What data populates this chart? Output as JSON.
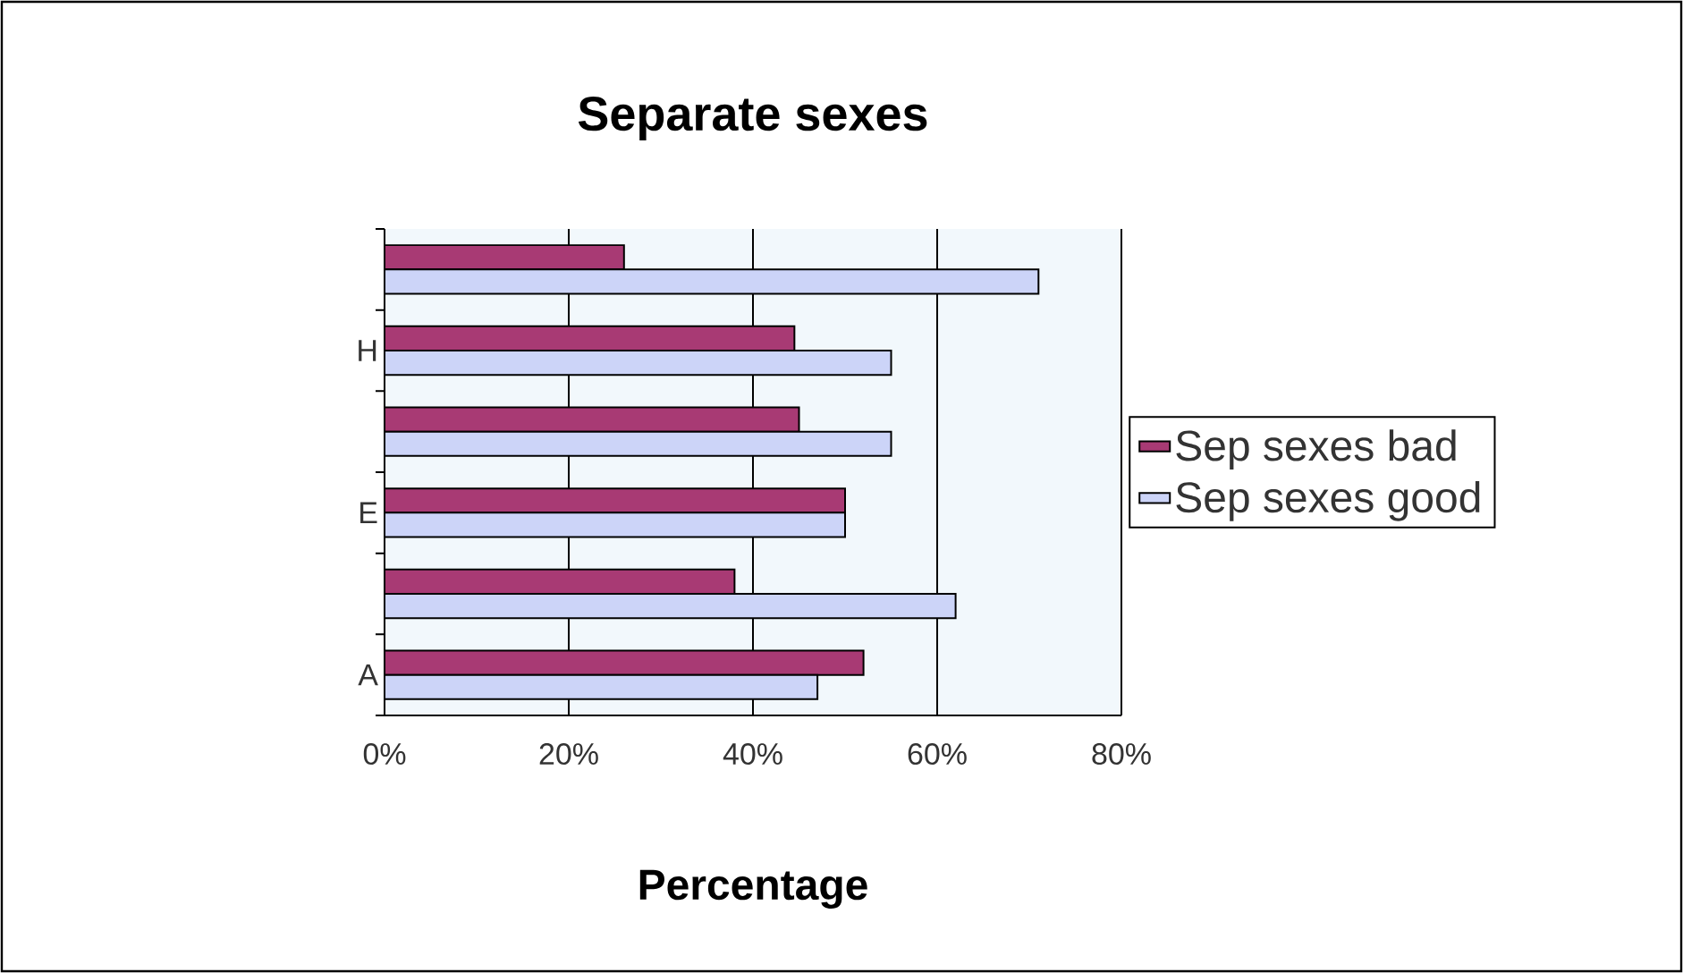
{
  "chart_data": {
    "type": "bar",
    "orientation": "horizontal",
    "title": "Separate sexes",
    "xlabel": "Percentage",
    "categories": [
      null,
      "H",
      null,
      "E",
      null,
      "A"
    ],
    "series": [
      {
        "name": "Sep sexes  bad",
        "color": "#a83a74",
        "values": [
          26,
          44.5,
          45,
          50,
          38,
          52
        ]
      },
      {
        "name": "Sep sexes  good",
        "color": "#ccd4f8",
        "values": [
          71,
          55,
          55,
          50,
          62,
          47
        ]
      }
    ],
    "xlim": [
      0,
      80
    ],
    "xticks": [
      {
        "value": 0,
        "label": "0%"
      },
      {
        "value": 20,
        "label": "20%"
      },
      {
        "value": 40,
        "label": "40%"
      },
      {
        "value": 60,
        "label": "60%"
      },
      {
        "value": 80,
        "label": "80%"
      }
    ],
    "grid": "x",
    "legend": "right"
  }
}
